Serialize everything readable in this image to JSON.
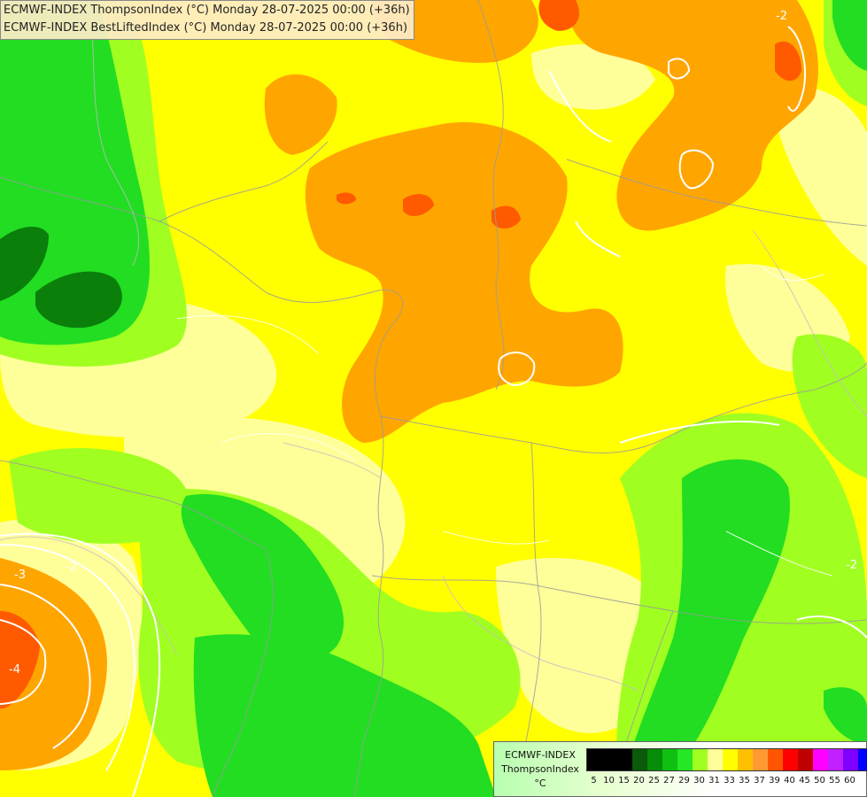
{
  "titles": [
    "ECMWF-INDEX ThompsonIndex (°C) Monday 28-07-2025 00:00 (+36h)",
    "ECMWF-INDEX BestLiftedIndex (°C) Monday 28-07-2025 00:00 (+36h)"
  ],
  "legend": {
    "model": "ECMWF-INDEX",
    "param": "ThompsonIndex",
    "unit": "°C",
    "classes": [
      {
        "value": "5",
        "color": "#000000"
      },
      {
        "value": "10",
        "color": "#000000"
      },
      {
        "value": "15",
        "color": "#000000"
      },
      {
        "value": "20",
        "color": "#0a5a0a"
      },
      {
        "value": "25",
        "color": "#068c06"
      },
      {
        "value": "27",
        "color": "#10c010"
      },
      {
        "value": "29",
        "color": "#26e626"
      },
      {
        "value": "30",
        "color": "#a0ff20"
      },
      {
        "value": "31",
        "color": "#ffff99"
      },
      {
        "value": "33",
        "color": "#ffff00"
      },
      {
        "value": "35",
        "color": "#ffc000"
      },
      {
        "value": "37",
        "color": "#ff9933"
      },
      {
        "value": "39",
        "color": "#ff5500"
      },
      {
        "value": "40",
        "color": "#ff0000"
      },
      {
        "value": "45",
        "color": "#c00000"
      },
      {
        "value": "50",
        "color": "#ff00ff"
      },
      {
        "value": "55",
        "color": "#c020ff"
      },
      {
        "value": "60",
        "color": "#8000ff"
      },
      {
        "value": "",
        "color": "#0000ff"
      }
    ]
  },
  "contour_labels": [
    "-2",
    "-3",
    "-4",
    "-2",
    "-2"
  ],
  "colors": {
    "green_dark": "#0a7f0a",
    "green": "#22dd22",
    "green_lime": "#a0ff20",
    "yellow_pale": "#ffff99",
    "yellow": "#ffff00",
    "orange_light": "#ffb000",
    "orange": "#ff9900",
    "red_orange": "#ff5500"
  }
}
